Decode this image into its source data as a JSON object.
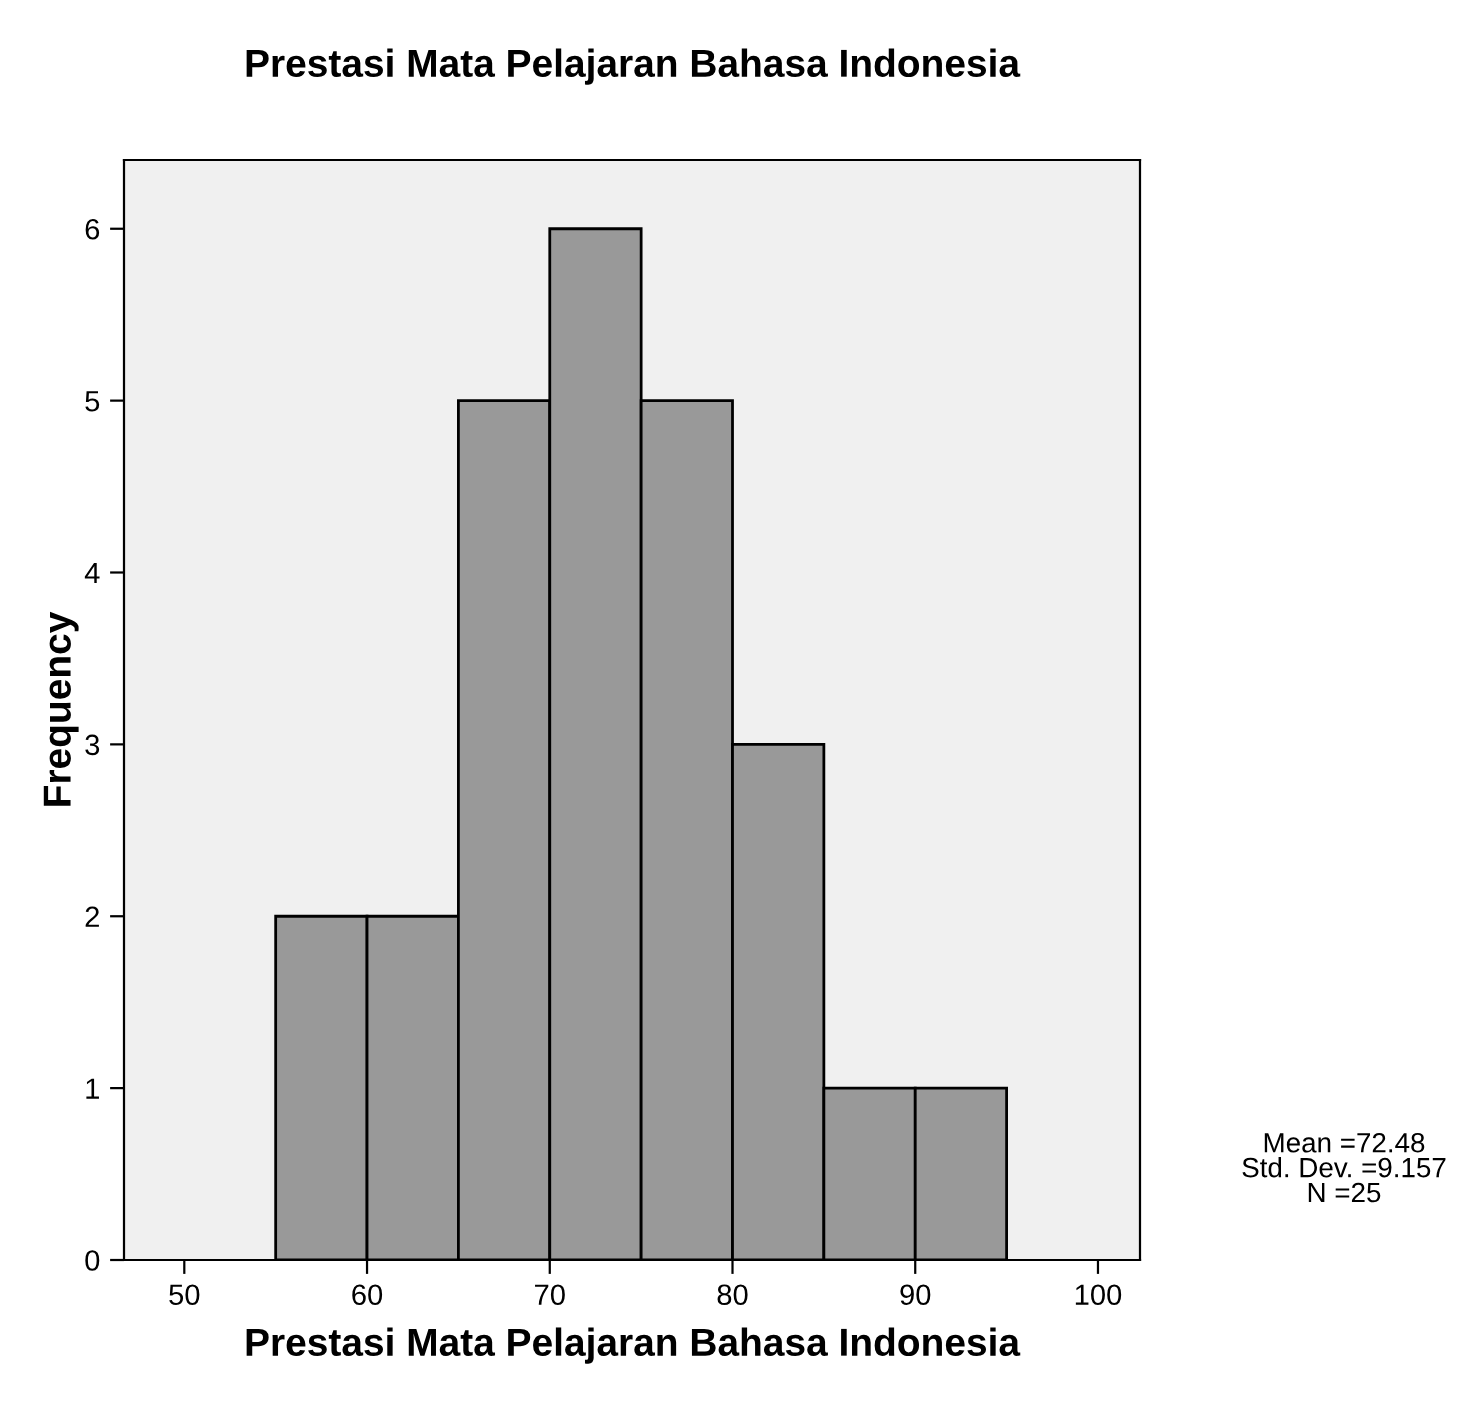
{
  "chart_data": {
    "type": "histogram",
    "title": "Prestasi Mata Pelajaran Bahasa Indonesia",
    "xlabel": "Prestasi Mata Pelajaran Bahasa Indonesia",
    "ylabel": "Frequency",
    "bins": [
      55,
      60,
      65,
      70,
      75,
      80,
      85,
      90,
      95
    ],
    "values": [
      2,
      2,
      5,
      6,
      5,
      3,
      1,
      1
    ],
    "color": "#999999",
    "xlim": [
      46.7,
      102.3
    ],
    "xticks": [
      50,
      60,
      70,
      80,
      90,
      100
    ],
    "ylim": [
      0,
      6.4
    ],
    "yticks": [
      0,
      1,
      2,
      3,
      4,
      5,
      6
    ],
    "grid": false,
    "annotations": [
      "Mean =72.48\nStd. Dev. =9.157\nN =25"
    ]
  }
}
